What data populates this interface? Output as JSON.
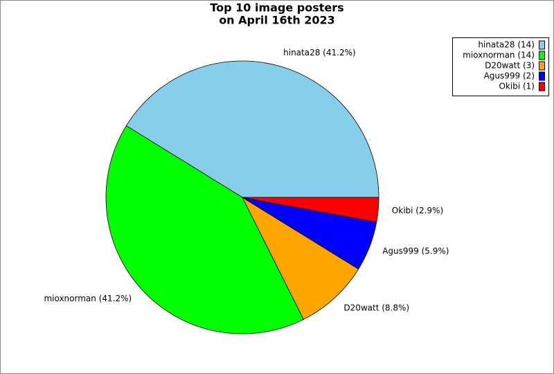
{
  "chart_data": {
    "type": "pie",
    "title": [
      "Top 10 image posters",
      "on April 16th 2023"
    ],
    "categories": [
      "hinata28",
      "mioxnorman",
      "D20watt",
      "Agus999",
      "Okibi"
    ],
    "values": [
      41.2,
      41.2,
      8.8,
      5.9,
      2.9
    ],
    "value_labels": [
      "hinata28 (41.2%)",
      "mioxnorman (41.2%)",
      "D20watt (8.8%)",
      "Agus999 (5.9%)",
      "Okibi (2.9%)"
    ],
    "colors": [
      "#87ceeb",
      "#00ff00",
      "#ffa500",
      "#0000ff",
      "#ff0000"
    ],
    "legend_labels": [
      "hinata28 (14)",
      "mioxnorman (14)",
      "D20watt (3)",
      "Agus999 (2)",
      "Okibi (1)"
    ],
    "legend": "upper right"
  }
}
